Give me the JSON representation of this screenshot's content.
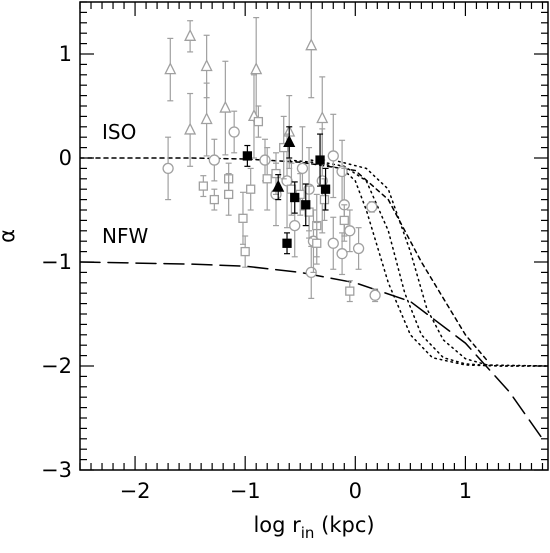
{
  "chart_data": {
    "type": "scatter",
    "title": "",
    "xlabel": "log r",
    "xlabel_sub": "in",
    "xlabel_unit": " (kpc)",
    "ylabel": "α",
    "xlim": [
      -2.5,
      1.75
    ],
    "ylim": [
      -3.0,
      1.5
    ],
    "x_ticks": [
      -2,
      -1,
      0,
      1
    ],
    "x_tick_labels": [
      "−2",
      "−1",
      "0",
      "1"
    ],
    "y_ticks": [
      -3,
      -2,
      -1,
      0,
      1
    ],
    "y_tick_labels": [
      "−3",
      "−2",
      "−1",
      "0",
      "1"
    ],
    "grid": false,
    "colors": {
      "gray": "#a0a0a0",
      "black": "#000000"
    },
    "annotations": [
      {
        "text": "ISO",
        "x": -2.3,
        "y": 0.25
      },
      {
        "text": "NFW",
        "x": -2.3,
        "y": -0.75
      }
    ],
    "curves": [
      {
        "id": "iso",
        "style": "short-dash",
        "x": [
          -2.5,
          -1.5,
          -1.0,
          -0.5,
          0.0,
          0.3,
          0.6,
          1.0,
          1.2
        ],
        "y": [
          0.0,
          0.0,
          -0.01,
          -0.04,
          -0.12,
          -0.4,
          -1.0,
          -1.7,
          -1.95
        ]
      },
      {
        "id": "nfw",
        "style": "long-dash",
        "x": [
          -2.5,
          -1.5,
          -1.0,
          -0.5,
          0.0,
          0.5,
          1.0,
          1.4,
          1.7
        ],
        "y": [
          -1.0,
          -1.02,
          -1.04,
          -1.1,
          -1.2,
          -1.38,
          -1.78,
          -2.25,
          -2.7
        ]
      },
      {
        "id": "dot-1",
        "style": "dotted",
        "x": [
          -0.6,
          -0.3,
          -0.1,
          0.0,
          0.1,
          0.3,
          0.5,
          0.7,
          1.0,
          1.3,
          1.75
        ],
        "y": [
          -0.02,
          -0.05,
          -0.12,
          -0.22,
          -0.5,
          -1.2,
          -1.7,
          -1.92,
          -1.99,
          -2.0,
          -2.0
        ]
      },
      {
        "id": "dot-2",
        "style": "dotted",
        "x": [
          -0.4,
          -0.1,
          0.1,
          0.3,
          0.45,
          0.6,
          0.8,
          1.0,
          1.3,
          1.75
        ],
        "y": [
          -0.02,
          -0.08,
          -0.22,
          -0.7,
          -1.3,
          -1.7,
          -1.92,
          -1.98,
          -2.0,
          -2.0
        ]
      },
      {
        "id": "dot-3",
        "style": "dotted",
        "x": [
          -0.2,
          0.1,
          0.3,
          0.5,
          0.65,
          0.8,
          1.0,
          1.2,
          1.75
        ],
        "y": [
          -0.02,
          -0.1,
          -0.3,
          -0.9,
          -1.45,
          -1.75,
          -1.93,
          -1.99,
          -2.0
        ]
      }
    ],
    "series": [
      {
        "marker": "triangle-open",
        "color": "gray",
        "points": [
          [
            -1.68,
            0.85,
            0.3
          ],
          [
            -1.5,
            1.17,
            0.15
          ],
          [
            -1.5,
            0.27,
            0.35
          ],
          [
            -1.35,
            0.88,
            0.3
          ],
          [
            -1.35,
            0.37,
            0.35
          ],
          [
            -1.18,
            0.48,
            0.45
          ],
          [
            -0.9,
            0.85,
            0.5
          ],
          [
            -0.92,
            0.4,
            0.4
          ],
          [
            -0.6,
            0.25,
            0.35
          ],
          [
            -0.4,
            1.08,
            0.5
          ],
          [
            -0.3,
            0.38,
            0.4
          ]
        ]
      },
      {
        "marker": "circle-open",
        "color": "gray",
        "points": [
          [
            -1.7,
            -0.1,
            0.3
          ],
          [
            -1.28,
            -0.02,
            0.2
          ],
          [
            -1.1,
            0.25,
            0.2
          ],
          [
            -0.82,
            -0.02,
            0.2
          ],
          [
            -0.72,
            -0.35,
            0.3
          ],
          [
            -0.62,
            -0.22,
            0.45
          ],
          [
            -0.55,
            -0.65,
            0.3
          ],
          [
            -0.48,
            -0.1,
            0.4
          ],
          [
            -0.42,
            -0.3,
            0.4
          ],
          [
            -0.4,
            -1.1,
            0.25
          ],
          [
            -0.38,
            -0.8,
            0.3
          ],
          [
            -0.3,
            -0.22,
            0.5
          ],
          [
            -0.2,
            0.02,
            0.4
          ],
          [
            -0.12,
            -0.13,
            0.3
          ],
          [
            -0.1,
            -0.45,
            0.35
          ],
          [
            -0.05,
            -0.7,
            0.2
          ],
          [
            -0.2,
            -0.82,
            0.25
          ],
          [
            -0.12,
            -0.92,
            0.2
          ],
          [
            0.03,
            -0.87,
            0.2
          ],
          [
            0.15,
            -0.47,
            0.05
          ],
          [
            0.18,
            -1.32,
            0.06
          ]
        ]
      },
      {
        "marker": "square-open",
        "color": "gray",
        "points": [
          [
            -1.38,
            -0.27,
            0.1
          ],
          [
            -1.28,
            -0.4,
            0.1
          ],
          [
            -1.15,
            -0.2,
            0.15
          ],
          [
            -1.15,
            -0.35,
            0.2
          ],
          [
            -1.02,
            -0.58,
            0.25
          ],
          [
            -1.0,
            -0.9,
            0.15
          ],
          [
            -0.95,
            -0.3,
            0.2
          ],
          [
            -0.88,
            0.35,
            0.15
          ],
          [
            -0.8,
            -0.2,
            0.3
          ],
          [
            -0.72,
            -0.15,
            0.2
          ],
          [
            -0.65,
            0.1,
            0.3
          ],
          [
            -0.58,
            -0.3,
            0.25
          ],
          [
            -0.5,
            -0.35,
            0.2
          ],
          [
            -0.42,
            -0.52,
            0.25
          ],
          [
            -0.35,
            -0.65,
            0.3
          ],
          [
            -0.28,
            -0.4,
            0.2
          ],
          [
            -0.35,
            -0.82,
            0.2
          ],
          [
            -0.1,
            -0.6,
            0.15
          ],
          [
            -0.05,
            -1.28,
            0.1
          ]
        ]
      },
      {
        "marker": "square-filled",
        "color": "black",
        "points": [
          [
            -0.98,
            0.02,
            0.1
          ],
          [
            -0.62,
            -0.82,
            0.1
          ],
          [
            -0.55,
            -0.38,
            0.15
          ],
          [
            -0.45,
            -0.45,
            0.2
          ],
          [
            -0.32,
            -0.02,
            0.25
          ],
          [
            -0.27,
            -0.3,
            0.2
          ]
        ]
      },
      {
        "marker": "triangle-filled",
        "color": "black",
        "points": [
          [
            -0.7,
            -0.28,
            0.12
          ],
          [
            -0.6,
            0.15,
            0.15
          ]
        ]
      }
    ]
  }
}
